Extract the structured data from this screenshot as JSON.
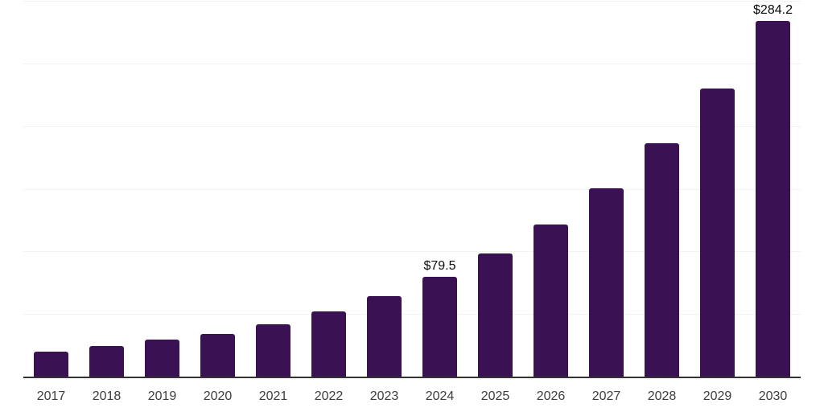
{
  "chart_data": {
    "type": "bar",
    "categories": [
      "2017",
      "2018",
      "2019",
      "2020",
      "2021",
      "2022",
      "2023",
      "2024",
      "2025",
      "2026",
      "2027",
      "2028",
      "2029",
      "2030"
    ],
    "values": [
      20.0,
      24.5,
      29.8,
      33.9,
      42.0,
      52.0,
      64.2,
      79.5,
      98.3,
      121.6,
      150.4,
      186.0,
      230.2,
      284.2
    ],
    "bar_labels": [
      "",
      "",
      "",
      "",
      "",
      "",
      "",
      "$79.5",
      "",
      "",
      "",
      "",
      "",
      "$284.2"
    ],
    "title": "",
    "xlabel": "",
    "ylabel": "",
    "ylim": [
      0,
      300
    ],
    "gridline_values": [
      50,
      100,
      150,
      200,
      250,
      300
    ],
    "grid": "horizontal",
    "legend": "none",
    "y_ticks_visible": false
  },
  "style": {
    "bar_color": "#3a1152",
    "grid_color": "#f2f2f2",
    "axis_color": "#333333",
    "tick_label_color": "#3d3d3d",
    "value_label_color": "#0a0a0a",
    "background_color": "#ffffff"
  }
}
